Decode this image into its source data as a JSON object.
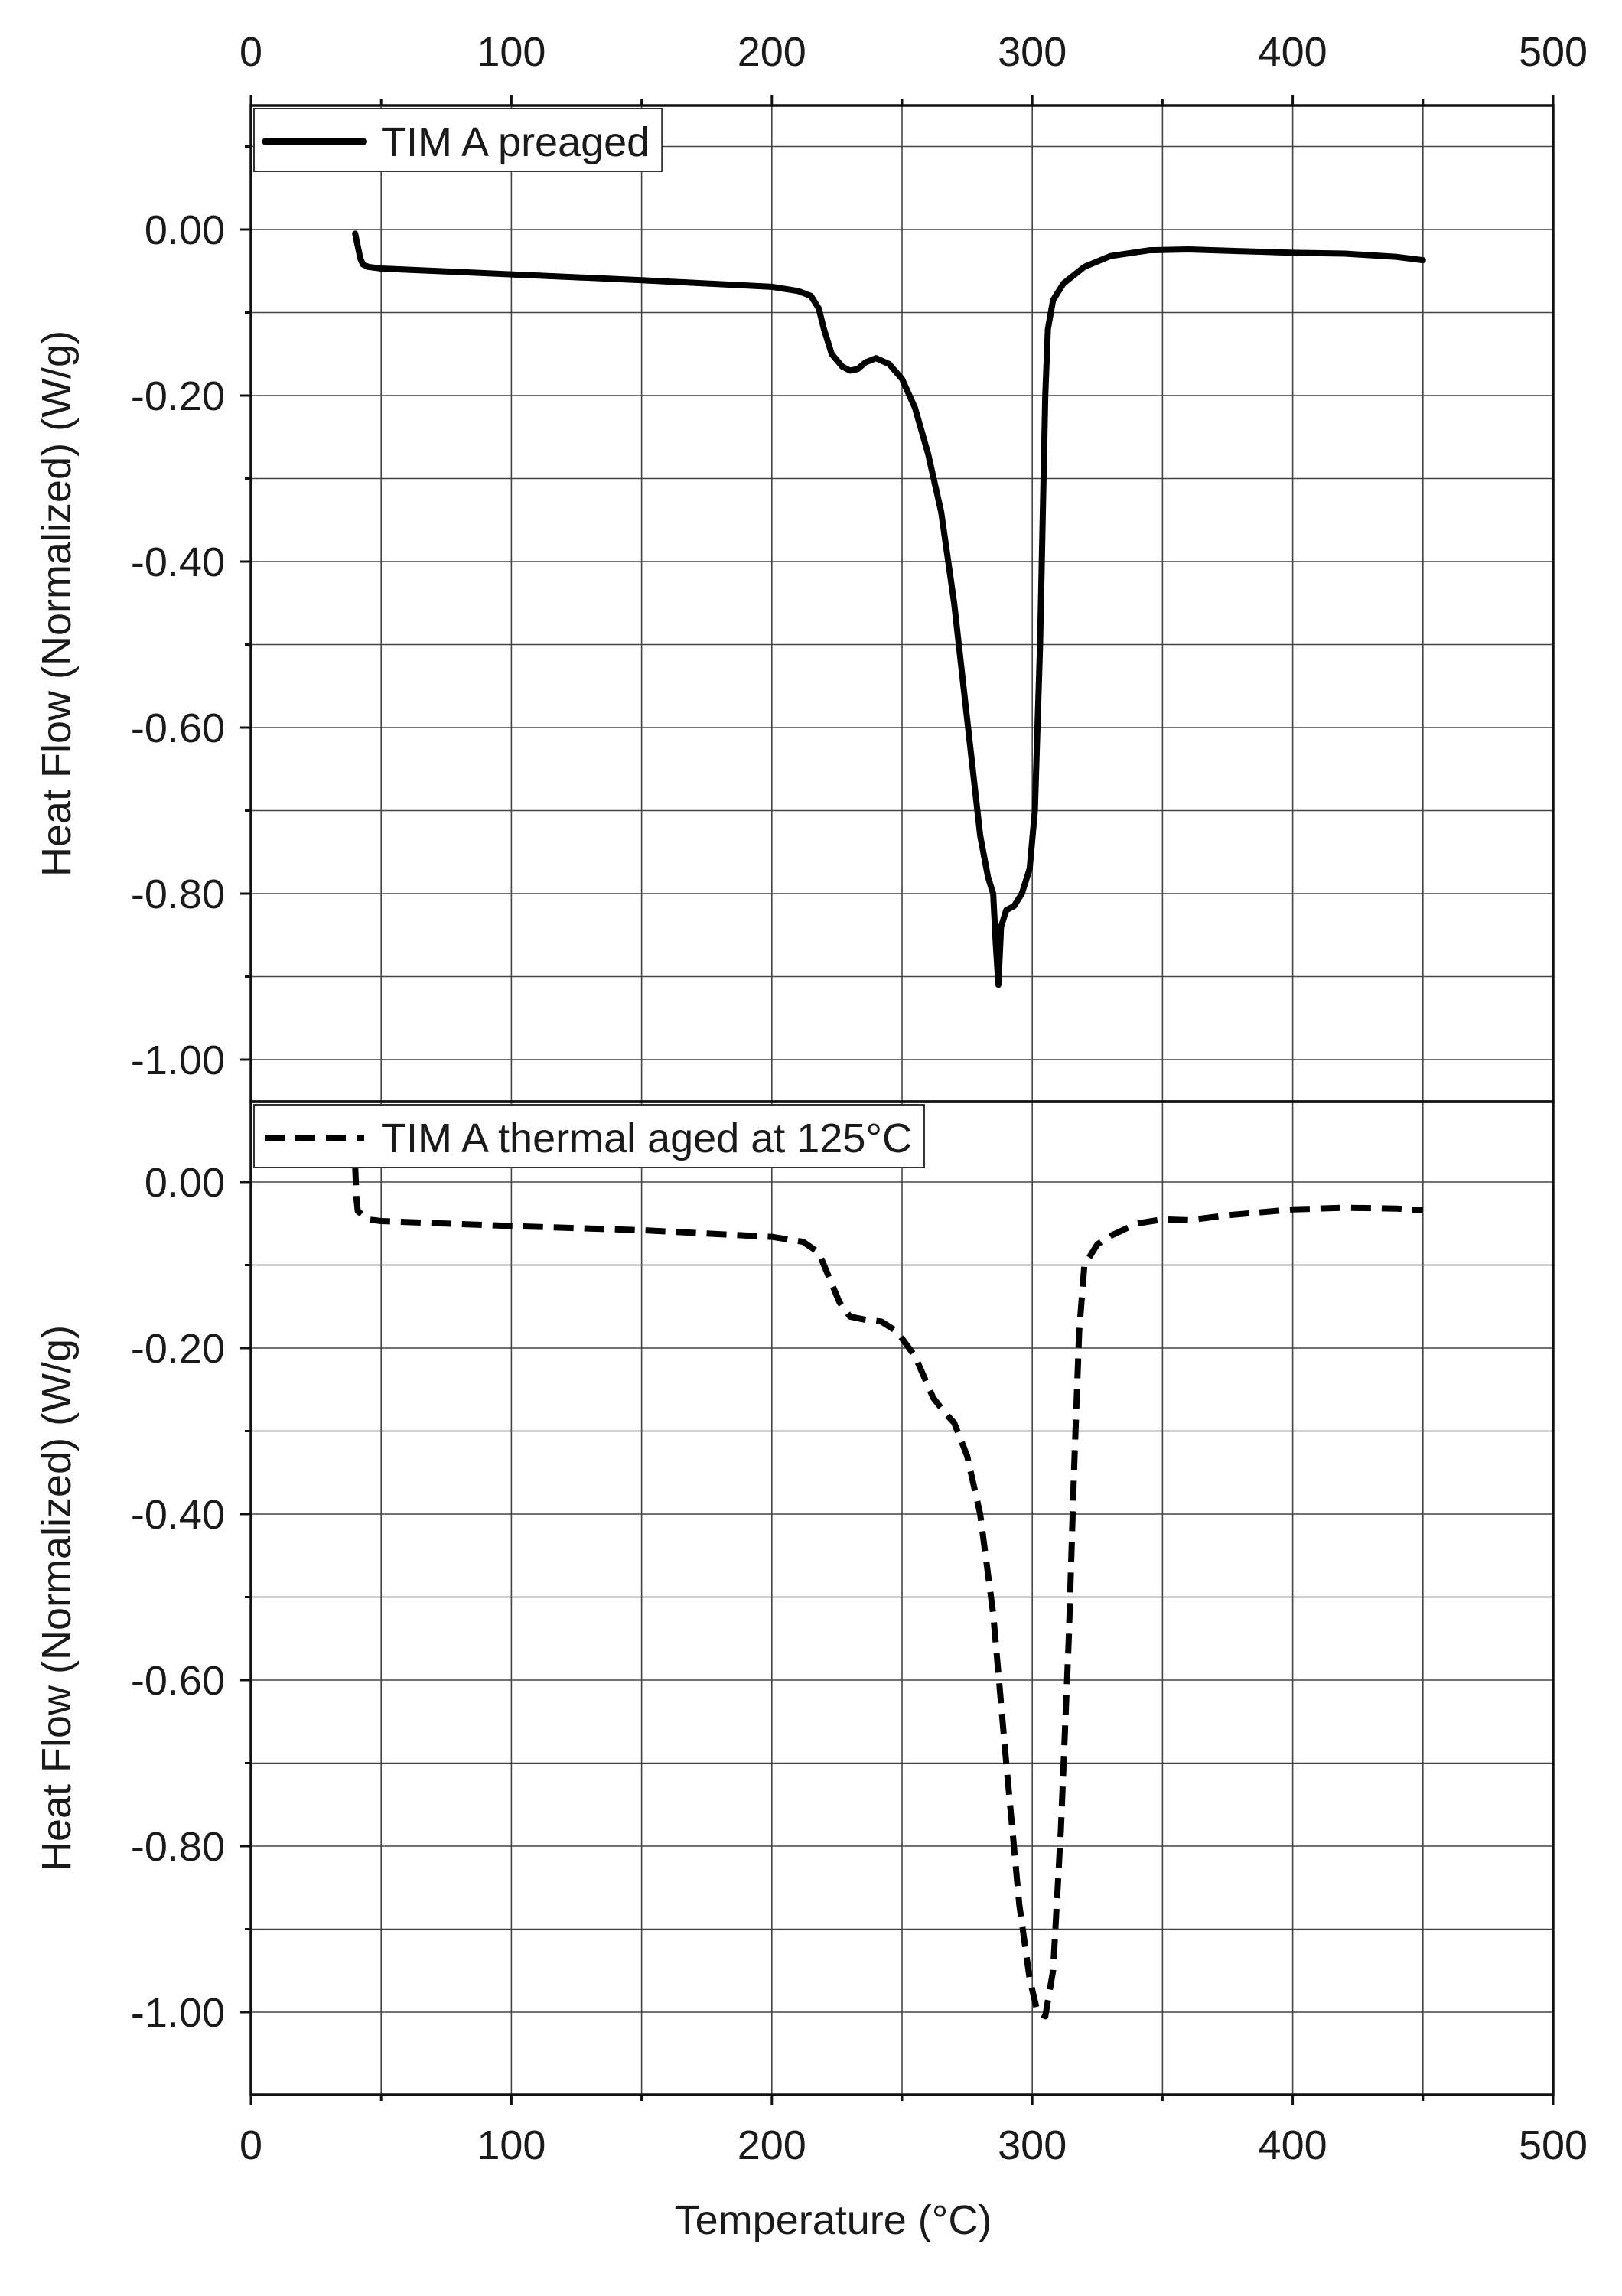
{
  "chart_data": {
    "type": "line",
    "xlabel": "Temperature (°C)",
    "xlim": [
      0,
      500
    ],
    "xticks": [
      0,
      100,
      200,
      300,
      400,
      500
    ],
    "grid": true,
    "panels": [
      {
        "ylabel": "Heat Flow (Normalized) (W/g)",
        "ylim": [
          -1.05,
          0.15
        ],
        "yticks": [
          0.0,
          -0.2,
          -0.4,
          -0.6,
          -0.8,
          -1.0
        ],
        "ytick_labels": [
          "0.00",
          "-0.20",
          "-0.40",
          "-0.60",
          "-0.80",
          "-1.00"
        ],
        "legend_position": "top-left",
        "series": [
          {
            "name": "TIM A preaged",
            "style": "solid",
            "color": "#000000",
            "points": [
              [
                40,
                -0.005
              ],
              [
                41,
                -0.02
              ],
              [
                42,
                -0.035
              ],
              [
                43,
                -0.042
              ],
              [
                45,
                -0.045
              ],
              [
                50,
                -0.047
              ],
              [
                100,
                -0.054
              ],
              [
                150,
                -0.061
              ],
              [
                200,
                -0.069
              ],
              [
                210,
                -0.074
              ],
              [
                215,
                -0.08
              ],
              [
                218,
                -0.095
              ],
              [
                220,
                -0.12
              ],
              [
                223,
                -0.15
              ],
              [
                227,
                -0.165
              ],
              [
                230,
                -0.17
              ],
              [
                233,
                -0.168
              ],
              [
                236,
                -0.16
              ],
              [
                240,
                -0.155
              ],
              [
                245,
                -0.162
              ],
              [
                250,
                -0.18
              ],
              [
                255,
                -0.215
              ],
              [
                260,
                -0.27
              ],
              [
                265,
                -0.34
              ],
              [
                270,
                -0.45
              ],
              [
                275,
                -0.59
              ],
              [
                280,
                -0.73
              ],
              [
                283,
                -0.78
              ],
              [
                285,
                -0.8
              ],
              [
                286,
                -0.86
              ],
              [
                287,
                -0.91
              ],
              [
                288,
                -0.84
              ],
              [
                290,
                -0.82
              ],
              [
                293,
                -0.815
              ],
              [
                296,
                -0.8
              ],
              [
                299,
                -0.77
              ],
              [
                301,
                -0.7
              ],
              [
                303,
                -0.5
              ],
              [
                305,
                -0.2
              ],
              [
                306,
                -0.12
              ],
              [
                308,
                -0.085
              ],
              [
                312,
                -0.065
              ],
              [
                320,
                -0.045
              ],
              [
                330,
                -0.032
              ],
              [
                345,
                -0.025
              ],
              [
                360,
                -0.024
              ],
              [
                380,
                -0.026
              ],
              [
                400,
                -0.028
              ],
              [
                420,
                -0.029
              ],
              [
                440,
                -0.033
              ],
              [
                450,
                -0.037
              ]
            ]
          }
        ]
      },
      {
        "ylabel": "Heat Flow (Normalized) (W/g)",
        "ylim": [
          -1.1,
          0.1
        ],
        "yticks": [
          0.0,
          -0.2,
          -0.4,
          -0.6,
          -0.8,
          -1.0
        ],
        "ytick_labels": [
          "0.00",
          "-0.20",
          "-0.40",
          "-0.60",
          "-0.80",
          "-1.00"
        ],
        "legend_position": "top-left",
        "series": [
          {
            "name": "TIM A thermal aged at 125°C",
            "style": "dashed",
            "color": "#000000",
            "points": [
              [
                40,
                0.02
              ],
              [
                40.5,
                -0.02
              ],
              [
                41,
                -0.035
              ],
              [
                43,
                -0.04
              ],
              [
                45,
                -0.045
              ],
              [
                50,
                -0.047
              ],
              [
                100,
                -0.053
              ],
              [
                150,
                -0.058
              ],
              [
                200,
                -0.066
              ],
              [
                212,
                -0.072
              ],
              [
                218,
                -0.085
              ],
              [
                222,
                -0.115
              ],
              [
                226,
                -0.145
              ],
              [
                230,
                -0.162
              ],
              [
                236,
                -0.166
              ],
              [
                242,
                -0.168
              ],
              [
                248,
                -0.18
              ],
              [
                255,
                -0.21
              ],
              [
                262,
                -0.26
              ],
              [
                267,
                -0.28
              ],
              [
                270,
                -0.29
              ],
              [
                275,
                -0.33
              ],
              [
                280,
                -0.4
              ],
              [
                285,
                -0.52
              ],
              [
                290,
                -0.7
              ],
              [
                295,
                -0.87
              ],
              [
                299,
                -0.96
              ],
              [
                302,
                -1.0
              ],
              [
                305,
                -1.005
              ],
              [
                308,
                -0.95
              ],
              [
                311,
                -0.78
              ],
              [
                314,
                -0.55
              ],
              [
                316,
                -0.35
              ],
              [
                318,
                -0.18
              ],
              [
                320,
                -0.1
              ],
              [
                325,
                -0.075
              ],
              [
                330,
                -0.065
              ],
              [
                340,
                -0.05
              ],
              [
                350,
                -0.045
              ],
              [
                360,
                -0.046
              ],
              [
                375,
                -0.04
              ],
              [
                400,
                -0.033
              ],
              [
                420,
                -0.031
              ],
              [
                440,
                -0.032
              ],
              [
                450,
                -0.034
              ]
            ]
          }
        ]
      }
    ]
  }
}
